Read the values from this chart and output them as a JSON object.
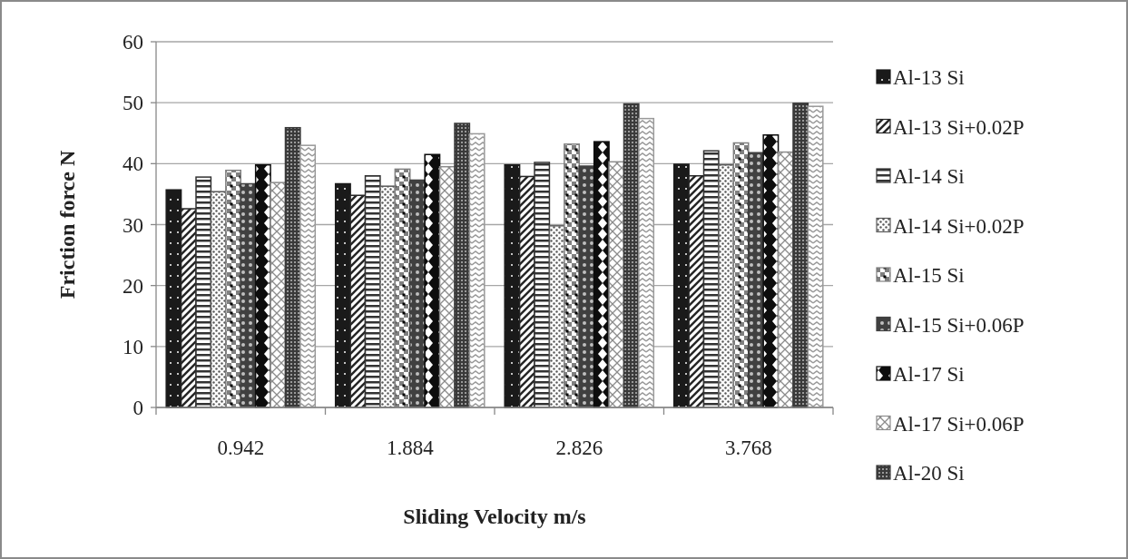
{
  "chart_data": {
    "type": "bar",
    "xlabel": "Sliding Velocity m/s",
    "ylabel": "Friction force N",
    "categories": [
      "0.942",
      "1.884",
      "2.826",
      "3.768"
    ],
    "series": [
      {
        "name": "Al-13 Si",
        "color": "#1a1a1a",
        "values": [
          35.7,
          36.7,
          39.8,
          39.9
        ]
      },
      {
        "name": "Al-13 Si+0.02P",
        "color": "#262626",
        "values": [
          32.6,
          34.8,
          37.9,
          38.0
        ]
      },
      {
        "name": "Al-14 Si",
        "color": "#333333",
        "values": [
          37.8,
          38.0,
          40.2,
          42.1
        ]
      },
      {
        "name": "Al-14 Si+0.02P",
        "color": "#595959",
        "values": [
          35.4,
          36.3,
          29.8,
          39.8
        ]
      },
      {
        "name": "Al-15 Si",
        "color": "#808080",
        "values": [
          38.9,
          39.1,
          43.2,
          43.4
        ]
      },
      {
        "name": "Al-15 Si+0.06P",
        "color": "#404040",
        "values": [
          36.7,
          37.3,
          39.6,
          41.8
        ]
      },
      {
        "name": "Al-17 Si",
        "color": "#0d0d0d",
        "values": [
          39.8,
          41.5,
          43.6,
          44.7
        ]
      },
      {
        "name": "Al-17 Si+0.06P",
        "color": "#8c8c8c",
        "values": [
          36.9,
          39.5,
          40.3,
          41.9
        ]
      },
      {
        "name": "Al-20 Si",
        "color": "#3a3a3a",
        "values": [
          45.9,
          46.6,
          49.8,
          49.9
        ]
      },
      {
        "color": "#999999",
        "values": [
          43.0,
          44.9,
          47.4,
          49.4
        ]
      }
    ],
    "ylim": [
      0,
      60
    ],
    "yticks": [
      0,
      10,
      20,
      30,
      40,
      50,
      60
    ],
    "grid": "y",
    "legend": "right"
  }
}
